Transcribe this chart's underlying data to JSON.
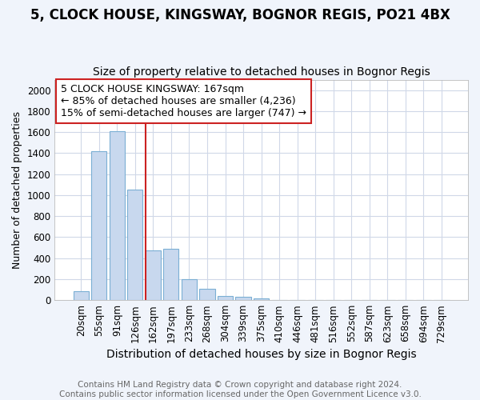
{
  "title": "5, CLOCK HOUSE, KINGSWAY, BOGNOR REGIS, PO21 4BX",
  "subtitle": "Size of property relative to detached houses in Bognor Regis",
  "xlabel": "Distribution of detached houses by size in Bognor Regis",
  "ylabel": "Number of detached properties",
  "bar_labels": [
    "20sqm",
    "55sqm",
    "91sqm",
    "126sqm",
    "162sqm",
    "197sqm",
    "233sqm",
    "268sqm",
    "304sqm",
    "339sqm",
    "375sqm",
    "410sqm",
    "446sqm",
    "481sqm",
    "516sqm",
    "552sqm",
    "587sqm",
    "623sqm",
    "658sqm",
    "694sqm",
    "729sqm"
  ],
  "bar_values": [
    85,
    1420,
    1610,
    1050,
    470,
    490,
    200,
    110,
    40,
    30,
    20,
    0,
    0,
    0,
    0,
    0,
    0,
    0,
    0,
    0,
    0
  ],
  "bar_color": "#c8d8ee",
  "bar_edge_color": "#7bafd4",
  "red_line_x": 4,
  "highlight_color": "#cc2222",
  "annotation_text": "5 CLOCK HOUSE KINGSWAY: 167sqm\n← 85% of detached houses are smaller (4,236)\n15% of semi-detached houses are larger (747) →",
  "annotation_box_color": "white",
  "annotation_box_edge_color": "#cc2222",
  "ylim": [
    0,
    2100
  ],
  "yticks": [
    0,
    200,
    400,
    600,
    800,
    1000,
    1200,
    1400,
    1600,
    1800,
    2000
  ],
  "title_fontsize": 12,
  "subtitle_fontsize": 10,
  "xlabel_fontsize": 10,
  "ylabel_fontsize": 9,
  "tick_fontsize": 8.5,
  "annotation_fontsize": 9,
  "footer_text": "Contains HM Land Registry data © Crown copyright and database right 2024.\nContains public sector information licensed under the Open Government Licence v3.0.",
  "footer_fontsize": 7.5,
  "plot_bg_color": "#ffffff",
  "fig_bg_color": "#f0f4fb"
}
